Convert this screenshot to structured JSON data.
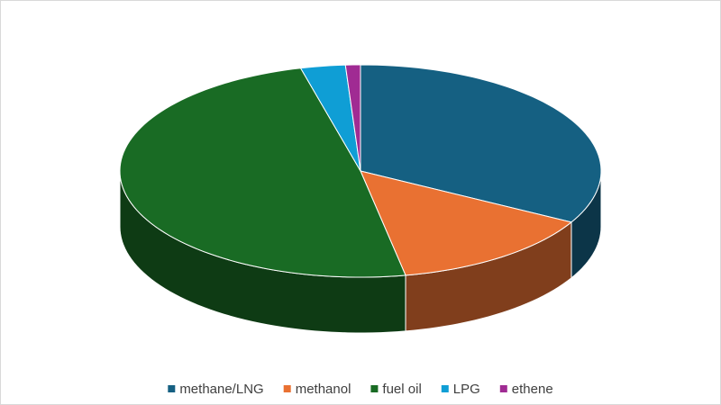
{
  "chart_data": {
    "type": "pie",
    "three_d": true,
    "categories": [
      "methane/LNG",
      "methanol",
      "fuel oil",
      "LPG",
      "ethene"
    ],
    "values": [
      33,
      14,
      49,
      3,
      1
    ],
    "colors": [
      "#156082",
      "#e97132",
      "#196b24",
      "#0f9ed5",
      "#a02b93"
    ],
    "legend": "bottom"
  }
}
